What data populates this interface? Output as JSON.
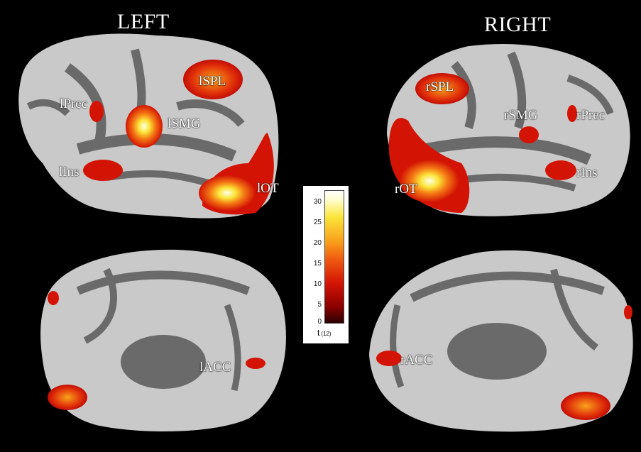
{
  "hemispheres": {
    "left": "LEFT",
    "right": "RIGHT"
  },
  "regions": {
    "lprec": "lPrec",
    "lspl": "lSPL",
    "lsmg": "lSMG",
    "lins": "lIns",
    "lot": "lOT",
    "lacc": "lACC",
    "rspl": "rSPL",
    "rsmg": "rSMG",
    "rprec": "rPrec",
    "rins": "rIns",
    "rot": "rOT",
    "racc": "rACC"
  },
  "colorbar": {
    "label": "t",
    "subscript": "(12)",
    "ticks": [
      "30",
      "25",
      "20",
      "15",
      "10",
      "5",
      "0"
    ],
    "min": 0,
    "max": 32,
    "colors": [
      "#8a0000",
      "#d31405",
      "#f9a21c",
      "#fbe53a",
      "#ffffff"
    ]
  },
  "colors": {
    "background": "#000000",
    "cortex_light": "#c9c9c9",
    "cortex_dark": "#6a6a6a",
    "activation_low": "#d31405",
    "activation_high": "#fff7b0"
  }
}
